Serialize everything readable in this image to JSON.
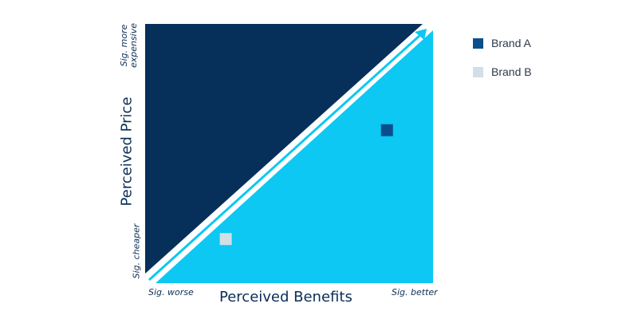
{
  "chart_data": {
    "type": "scatter",
    "xlabel": "Perceived Benefits",
    "ylabel": "Perceived Price",
    "x_ticks": [
      "Sig. worse",
      "Sig. better"
    ],
    "y_ticks": [
      "Sig. cheaper",
      "Sig. more expensive"
    ],
    "xlim": [
      0,
      1
    ],
    "ylim": [
      0,
      1
    ],
    "regions": [
      {
        "position": "upper-left",
        "color": "#062f5a"
      },
      {
        "position": "lower-right",
        "color": "#0cc8f2"
      }
    ],
    "diagonal_arrow_color": "#0cc8f2",
    "series": [
      {
        "name": "Brand A",
        "color": "#0a4f8c",
        "x": 0.84,
        "y": 0.59
      },
      {
        "name": "Brand B",
        "color": "#d3dee6",
        "x": 0.28,
        "y": 0.17
      }
    ],
    "legend": "right"
  }
}
